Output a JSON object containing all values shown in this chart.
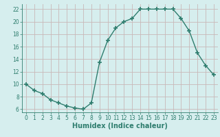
{
  "x": [
    0,
    1,
    2,
    3,
    4,
    5,
    6,
    7,
    8,
    9,
    10,
    11,
    12,
    13,
    14,
    15,
    16,
    17,
    18,
    19,
    20,
    21,
    22,
    23
  ],
  "y": [
    10,
    9,
    8.5,
    7.5,
    7,
    6.5,
    6.2,
    6,
    7,
    13.5,
    17,
    19,
    20,
    20.5,
    22,
    22,
    22,
    22,
    22,
    20.5,
    18.5,
    15,
    13,
    11.5
  ],
  "line_color": "#2e7d6e",
  "marker": "+",
  "marker_size": 5,
  "marker_lw": 1.2,
  "bg_color": "#d6eeee",
  "grid_color": "#c8b8b8",
  "xlabel": "Humidex (Indice chaleur)",
  "xlabel_fontsize": 7,
  "ylim": [
    5.5,
    22.8
  ],
  "xlim": [
    -0.5,
    23.5
  ],
  "yticks": [
    6,
    8,
    10,
    12,
    14,
    16,
    18,
    20,
    22
  ],
  "xticks": [
    0,
    1,
    2,
    3,
    4,
    5,
    6,
    7,
    8,
    9,
    10,
    11,
    12,
    13,
    14,
    15,
    16,
    17,
    18,
    19,
    20,
    21,
    22,
    23
  ],
  "tick_fontsize": 5.5,
  "line_width": 1.0
}
